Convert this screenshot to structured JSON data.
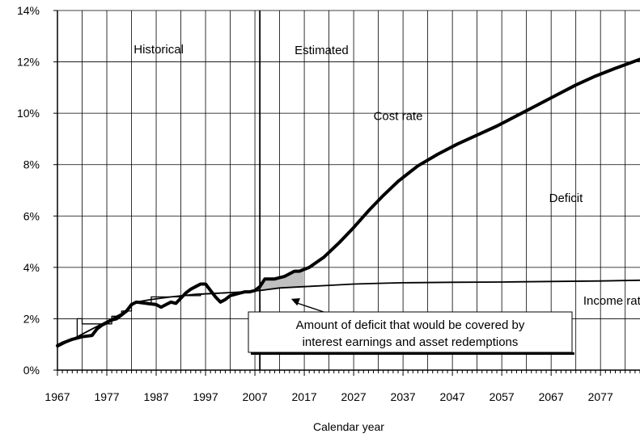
{
  "chart_data": {
    "type": "line",
    "title": "",
    "xlabel": "Calendar year",
    "ylabel": "",
    "xlim": [
      1967,
      2085
    ],
    "ylim": [
      0,
      14
    ],
    "x_ticks": [
      1967,
      1977,
      1987,
      1997,
      2007,
      2017,
      2027,
      2037,
      2047,
      2057,
      2067,
      2077
    ],
    "y_ticks": [
      "0%",
      "2%",
      "4%",
      "6%",
      "8%",
      "10%",
      "12%",
      "14%"
    ],
    "grid": true,
    "divider_year": 2008,
    "region_labels": [
      "Historical",
      "Estimated"
    ],
    "series": [
      {
        "name": "Cost rate",
        "points": [
          [
            1967,
            0.95
          ],
          [
            1968,
            1.05
          ],
          [
            1970,
            1.2
          ],
          [
            1972,
            1.3
          ],
          [
            1974,
            1.35
          ],
          [
            1975,
            1.6
          ],
          [
            1976,
            1.75
          ],
          [
            1977,
            1.85
          ],
          [
            1978,
            1.95
          ],
          [
            1979,
            2.0
          ],
          [
            1980,
            2.15
          ],
          [
            1981,
            2.3
          ],
          [
            1982,
            2.55
          ],
          [
            1983,
            2.65
          ],
          [
            1985,
            2.6
          ],
          [
            1987,
            2.55
          ],
          [
            1988,
            2.45
          ],
          [
            1989,
            2.55
          ],
          [
            1990,
            2.65
          ],
          [
            1991,
            2.6
          ],
          [
            1992,
            2.8
          ],
          [
            1993,
            3.0
          ],
          [
            1994,
            3.15
          ],
          [
            1995,
            3.25
          ],
          [
            1996,
            3.35
          ],
          [
            1997,
            3.35
          ],
          [
            1998,
            3.1
          ],
          [
            1999,
            2.85
          ],
          [
            2000,
            2.65
          ],
          [
            2001,
            2.75
          ],
          [
            2002,
            2.9
          ],
          [
            2003,
            2.95
          ],
          [
            2004,
            3.0
          ],
          [
            2005,
            3.05
          ],
          [
            2006,
            3.05
          ],
          [
            2007,
            3.1
          ],
          [
            2008,
            3.25
          ],
          [
            2009,
            3.55
          ],
          [
            2011,
            3.55
          ],
          [
            2013,
            3.65
          ],
          [
            2015,
            3.85
          ],
          [
            2016,
            3.85
          ],
          [
            2018,
            4.0
          ],
          [
            2021,
            4.4
          ],
          [
            2024,
            4.95
          ],
          [
            2027,
            5.55
          ],
          [
            2030,
            6.2
          ],
          [
            2033,
            6.8
          ],
          [
            2036,
            7.35
          ],
          [
            2040,
            7.95
          ],
          [
            2044,
            8.4
          ],
          [
            2048,
            8.8
          ],
          [
            2052,
            9.15
          ],
          [
            2056,
            9.5
          ],
          [
            2060,
            9.9
          ],
          [
            2064,
            10.3
          ],
          [
            2068,
            10.7
          ],
          [
            2072,
            11.1
          ],
          [
            2076,
            11.45
          ],
          [
            2080,
            11.75
          ],
          [
            2085,
            12.1
          ]
        ]
      },
      {
        "name": "Income rate",
        "points": [
          [
            1967,
            0.9
          ],
          [
            1970,
            1.2
          ],
          [
            1976,
            1.8
          ],
          [
            1980,
            2.2
          ],
          [
            1983,
            2.65
          ],
          [
            1986,
            2.75
          ],
          [
            1990,
            2.85
          ],
          [
            1995,
            2.95
          ],
          [
            2000,
            3.0
          ],
          [
            2005,
            3.05
          ],
          [
            2008,
            3.1
          ],
          [
            2012,
            3.2
          ],
          [
            2017,
            3.25
          ],
          [
            2022,
            3.3
          ],
          [
            2027,
            3.35
          ],
          [
            2032,
            3.38
          ],
          [
            2037,
            3.4
          ],
          [
            2047,
            3.42
          ],
          [
            2057,
            3.43
          ],
          [
            2067,
            3.45
          ],
          [
            2077,
            3.47
          ],
          [
            2085,
            3.5
          ]
        ]
      },
      {
        "name": "historical-tax-rate-steps",
        "points": [
          [
            1967,
            1.0
          ],
          [
            1971,
            1.3
          ],
          [
            1971,
            2.0
          ],
          [
            1972,
            2.0
          ],
          [
            1972,
            1.8
          ],
          [
            1978,
            1.8
          ],
          [
            1978,
            2.1
          ],
          [
            1980,
            2.1
          ],
          [
            1980,
            2.3
          ],
          [
            1982,
            2.3
          ],
          [
            1982,
            2.6
          ],
          [
            1986,
            2.6
          ],
          [
            1986,
            2.85
          ],
          [
            1992,
            2.85
          ],
          [
            1992,
            2.9
          ],
          [
            1996,
            2.9
          ],
          [
            1996,
            2.95
          ],
          [
            2001,
            3.0
          ],
          [
            2008,
            3.1
          ]
        ]
      }
    ],
    "annotations": [
      {
        "text": "Cost rate",
        "x": 2036,
        "y": 9.9
      },
      {
        "text": "Deficit",
        "x": 2070,
        "y": 6.7
      },
      {
        "text": "Income rate",
        "x": 2080,
        "y": 2.7
      }
    ],
    "shaded_region": {
      "name": "Amount of deficit that would be covered by interest earnings and asset redemptions",
      "x_range": [
        2008,
        2017
      ]
    },
    "callout_lines": [
      "Amount of deficit that would be covered by",
      "interest earnings and asset redemptions"
    ]
  }
}
